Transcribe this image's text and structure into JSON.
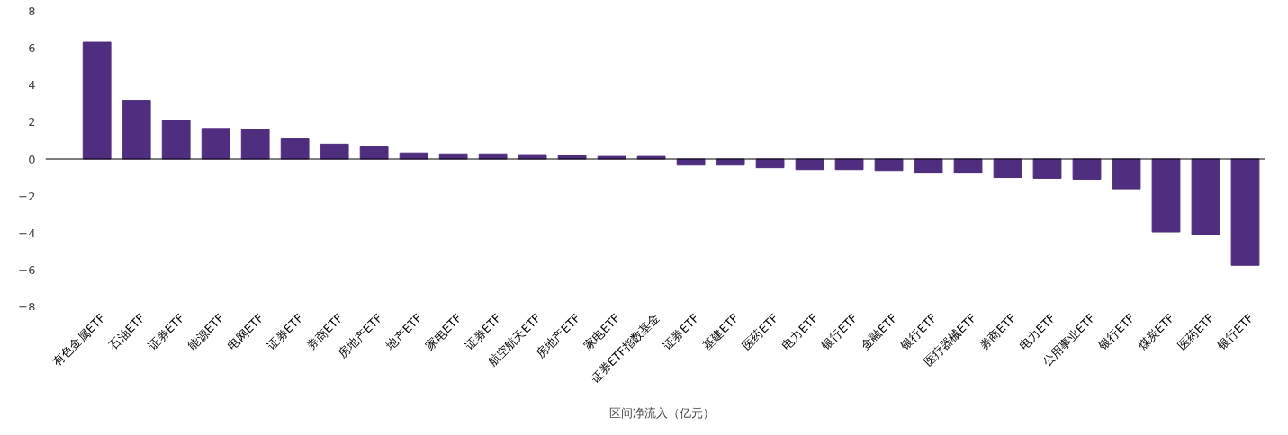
{
  "chart_data": {
    "type": "bar",
    "categories": [
      "有色金属ETF",
      "石油ETF",
      "证券ETF",
      "能源ETF",
      "电网ETF",
      "证券ETF",
      "券商ETF",
      "房地产ETF",
      "地产ETF",
      "家电ETF",
      "证券ETF",
      "航空航天ETF",
      "房地产ETF",
      "家电ETF",
      "证券ETF指数基金",
      "证券ETF",
      "基建ETF",
      "医药ETF",
      "电力ETF",
      "银行ETF",
      "金融ETF",
      "银行ETF",
      "医疗器械ETF",
      "券商ETF",
      "电力ETF",
      "公用事业ETF",
      "银行ETF",
      "煤炭ETF",
      "医药ETF",
      "银行ETF"
    ],
    "series": [
      {
        "name": "区间净流入（亿元）",
        "color": "#4f2d7f",
        "values": [
          6.32,
          3.18,
          2.09,
          1.66,
          1.61,
          1.09,
          0.81,
          0.66,
          0.33,
          0.28,
          0.28,
          0.24,
          0.19,
          0.14,
          0.14,
          -0.33,
          -0.33,
          -0.47,
          -0.57,
          -0.57,
          -0.62,
          -0.76,
          -0.76,
          -1.0,
          -1.04,
          -1.09,
          -1.61,
          -3.94,
          -4.08,
          -5.75
        ]
      }
    ],
    "ylim": [
      -8,
      8
    ],
    "yticks": [
      {
        "value": -8,
        "label": "−8"
      },
      {
        "value": -6,
        "label": "−6"
      },
      {
        "value": -4,
        "label": "−4"
      },
      {
        "value": -2,
        "label": "−2"
      },
      0,
      2,
      4,
      6,
      8
    ],
    "legend": "bottom"
  }
}
